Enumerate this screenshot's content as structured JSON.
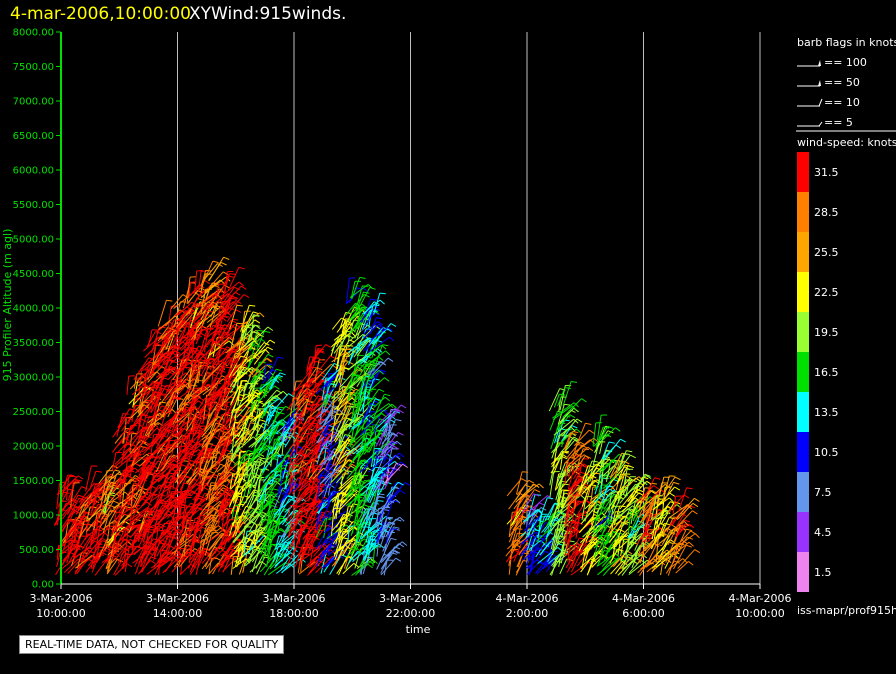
{
  "header": {
    "time": "4-mar-2006,10:00:00",
    "title": "XYWind:915winds."
  },
  "quality_note": "REAL-TIME DATA, NOT CHECKED FOR QUALITY",
  "barb_legend": {
    "title": "barb flags in knots",
    "entries": [
      {
        "label": "== 100",
        "value": 100
      },
      {
        "label": "== 50",
        "value": 50
      },
      {
        "label": "== 10",
        "value": 10
      },
      {
        "label": "== 5",
        "value": 5
      }
    ]
  },
  "colorbar": {
    "title": "wind-speed: knots",
    "labels": [
      "31.5",
      "28.5",
      "25.5",
      "22.5",
      "19.5",
      "16.5",
      "13.5",
      "10.5",
      "7.5",
      "4.5",
      "1.5"
    ],
    "colors": [
      "#ff0000",
      "#ff7f00",
      "#ffa500",
      "#ffff00",
      "#9aff32",
      "#00e000",
      "#00ffff",
      "#0000ff",
      "#6495ed",
      "#9a32ff",
      "#ee82ee"
    ],
    "footer": "iss-mapr/prof915h"
  },
  "colors": {
    "axis": "#00e000",
    "grid": "#bfbfbf",
    "header_time": "#ffff00",
    "header_title": "#ffffff"
  },
  "chart_data": {
    "type": "scatter",
    "xlabel": "time",
    "ylabel": "915 Profiler Altitude (m agl)",
    "xlim": [
      "2006-03-03 10:00",
      "2006-03-04 10:00"
    ],
    "x_ticks": [
      {
        "date": "3-Mar-2006",
        "time": "10:00:00",
        "x": "2006-03-03 10:00"
      },
      {
        "date": "3-Mar-2006",
        "time": "14:00:00",
        "x": "2006-03-03 14:00"
      },
      {
        "date": "3-Mar-2006",
        "time": "18:00:00",
        "x": "2006-03-03 18:00"
      },
      {
        "date": "3-Mar-2006",
        "time": "22:00:00",
        "x": "2006-03-03 22:00"
      },
      {
        "date": "4-Mar-2006",
        "time": "2:00:00",
        "x": "2006-03-04 02:00"
      },
      {
        "date": "4-Mar-2006",
        "time": "6:00:00",
        "x": "2006-03-04 06:00"
      },
      {
        "date": "4-Mar-2006",
        "time": "10:00:00",
        "x": "2006-03-04 10:00"
      }
    ],
    "ylim": [
      0,
      8000
    ],
    "y_ticks": [
      "0.00",
      "500.00",
      "1000.00",
      "1500.00",
      "2000.00",
      "2500.00",
      "3000.00",
      "3500.00",
      "4000.00",
      "4500.00",
      "5000.00",
      "5500.00",
      "6000.00",
      "6500.00",
      "7000.00",
      "7500.00",
      "8000.00"
    ],
    "grid": "vertical",
    "legend": "right",
    "series": [
      {
        "x": "2006-03-03 10:00",
        "y_top": 1300,
        "speed": 31.5
      },
      {
        "x": "2006-03-03 10:30",
        "y_top": 1200,
        "speed": 31.5
      },
      {
        "x": "2006-03-03 11:00",
        "y_top": 1400,
        "speed": 31.5
      },
      {
        "x": "2006-03-03 11:30",
        "y_top": 1500,
        "speed": 28.5
      },
      {
        "x": "2006-03-03 12:00",
        "y_top": 2300,
        "speed": 31.5
      },
      {
        "x": "2006-03-03 12:30",
        "y_top": 3000,
        "speed": 31.5
      },
      {
        "x": "2006-03-03 13:00",
        "y_top": 3500,
        "speed": 31.5
      },
      {
        "x": "2006-03-03 13:30",
        "y_top": 3800,
        "speed": 31.5
      },
      {
        "x": "2006-03-03 14:00",
        "y_top": 4000,
        "speed": 31.5
      },
      {
        "x": "2006-03-03 14:30",
        "y_top": 4300,
        "speed": 31.5
      },
      {
        "x": "2006-03-03 15:00",
        "y_top": 4450,
        "speed": 28.5
      },
      {
        "x": "2006-03-03 15:30",
        "y_top": 4300,
        "speed": 31.5
      },
      {
        "x": "2006-03-03 16:00",
        "y_top": 3800,
        "speed": 22.5
      },
      {
        "x": "2006-03-03 16:30",
        "y_top": 3600,
        "speed": 19.5
      },
      {
        "x": "2006-03-03 17:00",
        "y_top": 3000,
        "speed": 16.5
      },
      {
        "x": "2006-03-03 17:30",
        "y_top": 2400,
        "speed": 13.5
      },
      {
        "x": "2006-03-03 18:00",
        "y_top": 2800,
        "speed": 31.5
      },
      {
        "x": "2006-03-03 18:30",
        "y_top": 3200,
        "speed": 31.5
      },
      {
        "x": "2006-03-03 19:00",
        "y_top": 3000,
        "speed": 10.5
      },
      {
        "x": "2006-03-03 19:30",
        "y_top": 3800,
        "speed": 22.5
      },
      {
        "x": "2006-03-03 20:00",
        "y_top": 4200,
        "speed": 16.5
      },
      {
        "x": "2006-03-03 20:30",
        "y_top": 3900,
        "speed": 13.5
      },
      {
        "x": "2006-03-03 21:00",
        "y_top": 2400,
        "speed": 7.5
      },
      {
        "x": "2006-03-04 01:30",
        "y_top": 1300,
        "speed": 28.5
      },
      {
        "x": "2006-03-04 02:00",
        "y_top": 1100,
        "speed": 10.5
      },
      {
        "x": "2006-03-04 02:30",
        "y_top": 1000,
        "speed": 13.5
      },
      {
        "x": "2006-03-04 03:00",
        "y_top": 2600,
        "speed": 19.5
      },
      {
        "x": "2006-03-04 03:30",
        "y_top": 2000,
        "speed": 31.5
      },
      {
        "x": "2006-03-04 04:00",
        "y_top": 1600,
        "speed": 22.5
      },
      {
        "x": "2006-03-04 04:30",
        "y_top": 2100,
        "speed": 16.5
      },
      {
        "x": "2006-03-04 05:00",
        "y_top": 1700,
        "speed": 22.5
      },
      {
        "x": "2006-03-04 05:30",
        "y_top": 1400,
        "speed": 19.5
      },
      {
        "x": "2006-03-04 06:00",
        "y_top": 1200,
        "speed": 28.5
      },
      {
        "x": "2006-03-04 06:30",
        "y_top": 1300,
        "speed": 22.5
      },
      {
        "x": "2006-03-04 07:00",
        "y_top": 1100,
        "speed": 28.5
      }
    ]
  }
}
